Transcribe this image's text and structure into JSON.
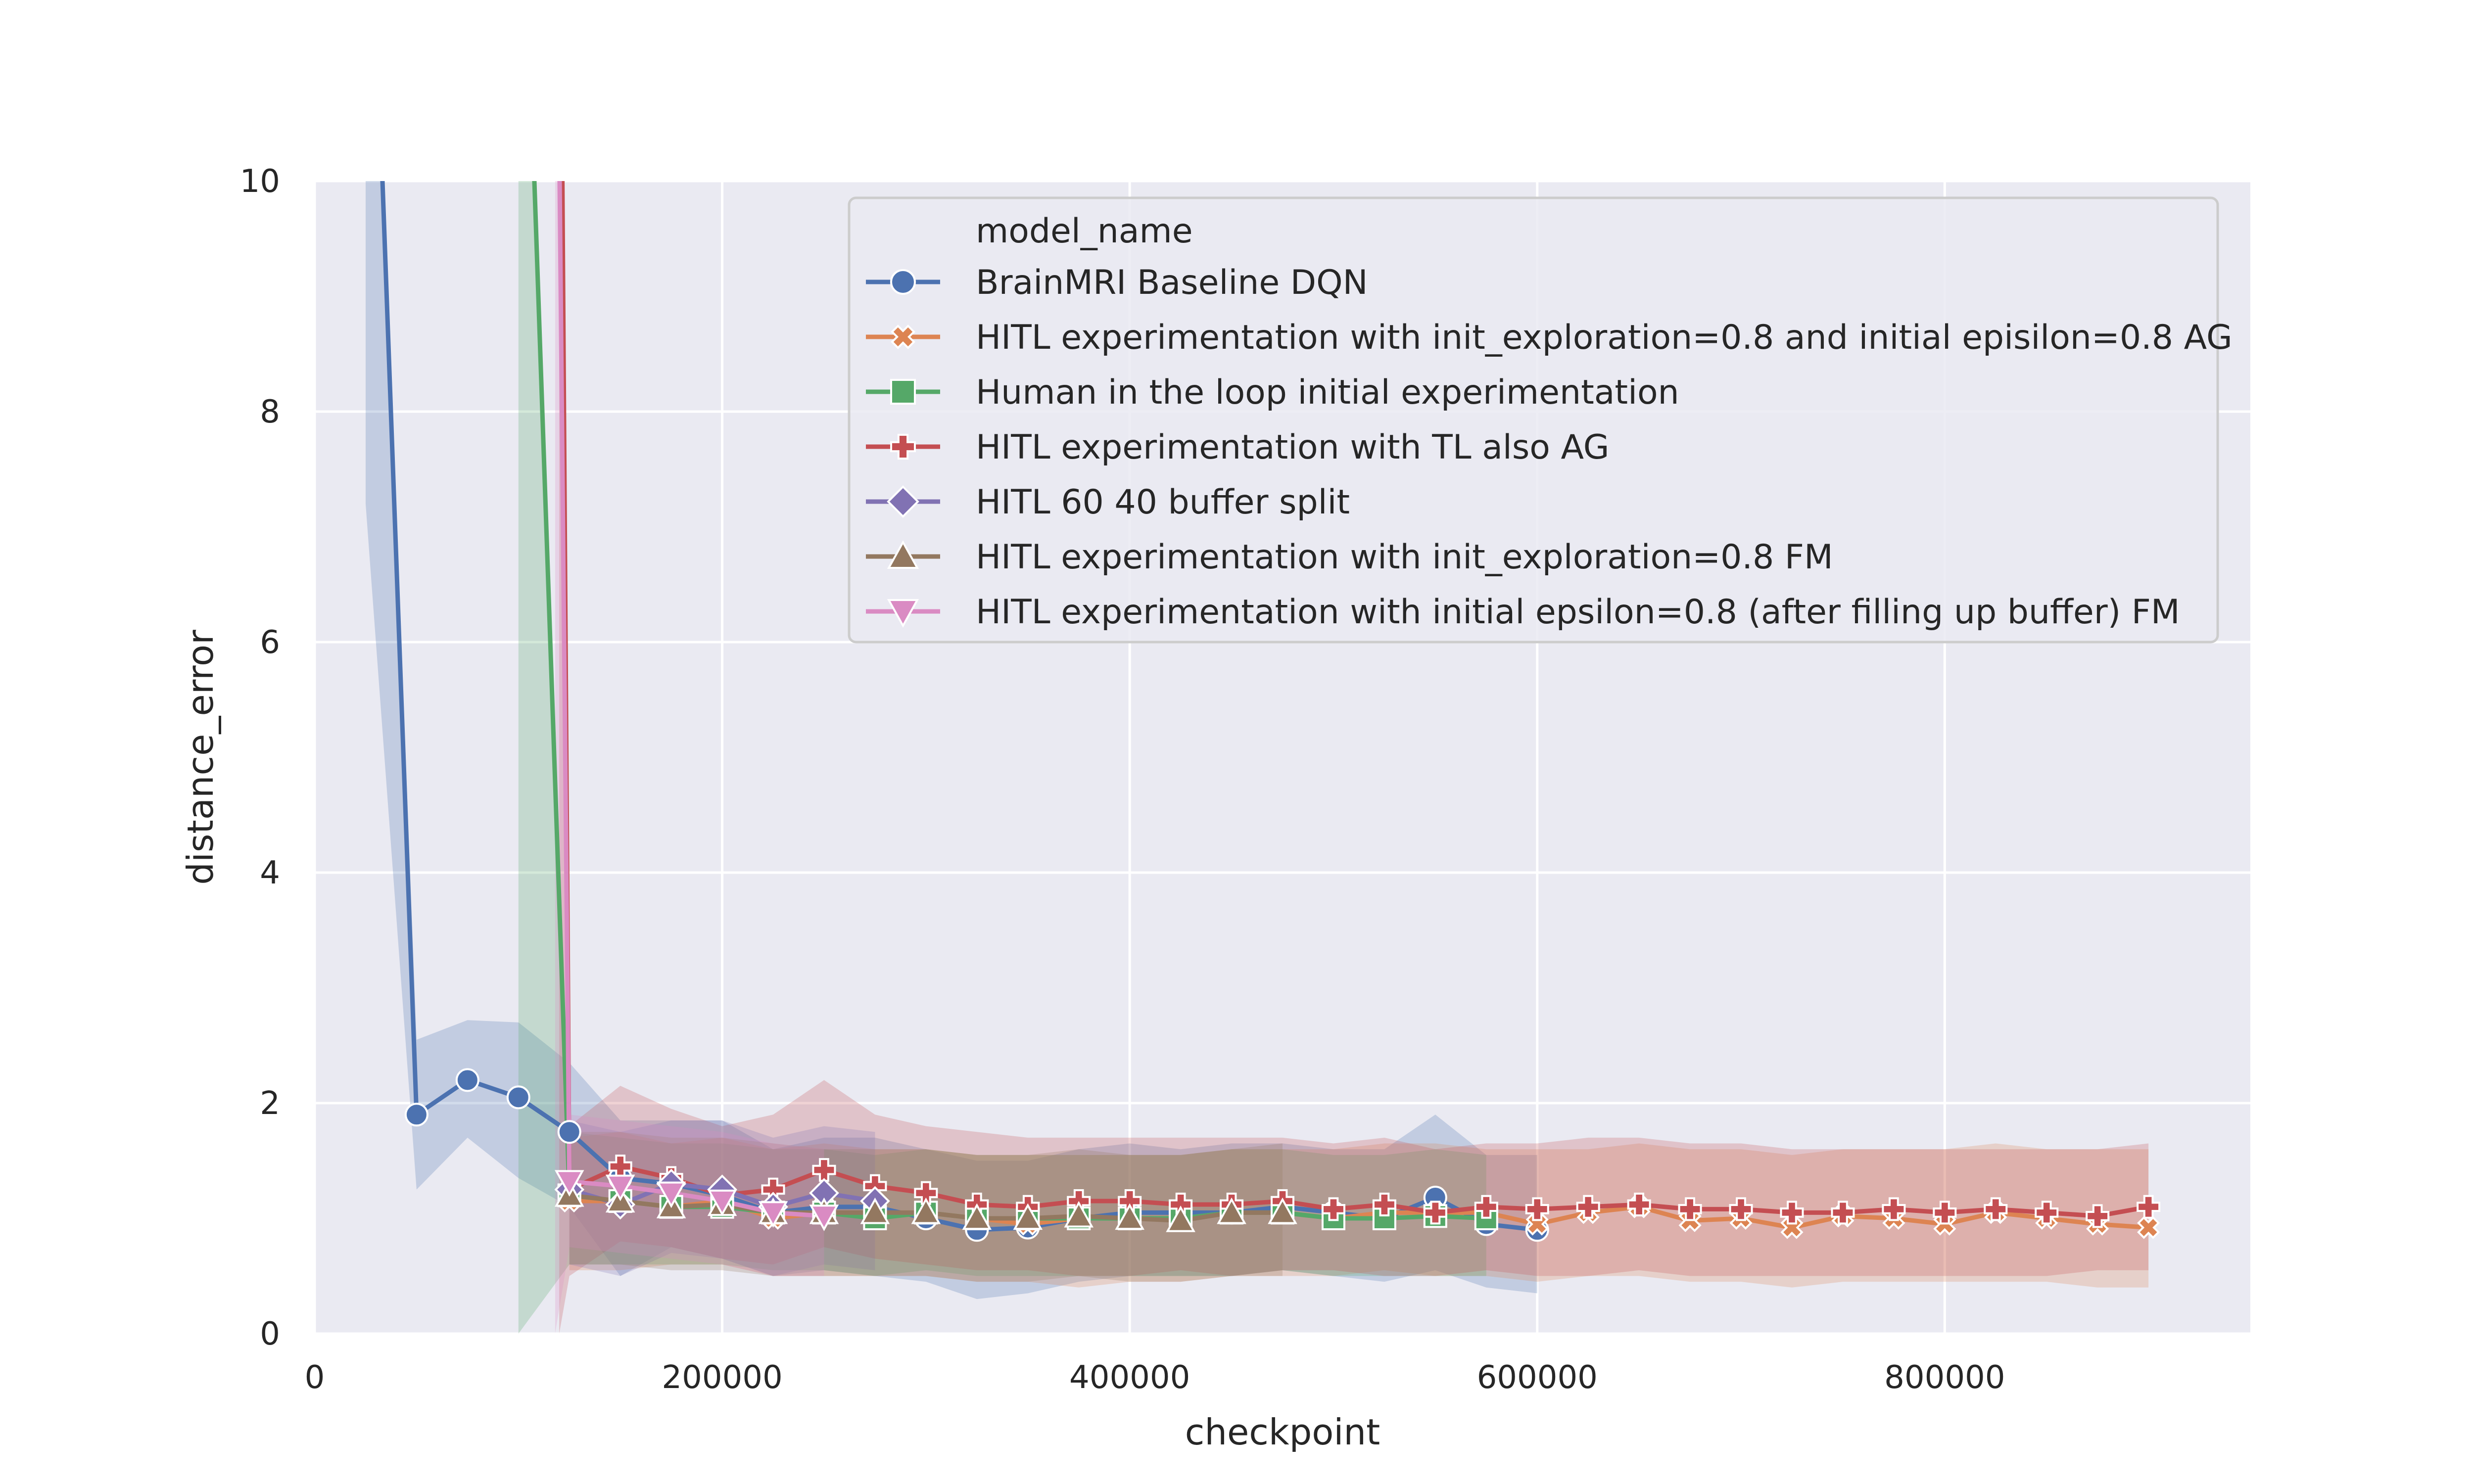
{
  "chart_data": {
    "type": "line",
    "title": "",
    "xlabel": "checkpoint",
    "ylabel": "distance_error",
    "xlim": [
      0,
      950000
    ],
    "ylim": [
      0,
      10
    ],
    "xticks": [
      0,
      200000,
      400000,
      600000,
      800000
    ],
    "yticks": [
      0,
      2,
      4,
      6,
      8,
      10
    ],
    "xtick_labels": [
      "0",
      "200000",
      "400000",
      "600000",
      "800000"
    ],
    "ytick_labels": [
      "0",
      "2",
      "4",
      "6",
      "8",
      "10"
    ],
    "grid": true,
    "legend": {
      "title": "model_name",
      "position": "top-right"
    },
    "series": [
      {
        "name": "BrainMRI Baseline DQN",
        "color": "#4c72b0",
        "marker": "circle",
        "x": [
          25000,
          50000,
          75000,
          100000,
          125000,
          150000,
          175000,
          200000,
          225000,
          250000,
          275000,
          300000,
          325000,
          350000,
          375000,
          400000,
          425000,
          450000,
          475000,
          500000,
          525000,
          550000,
          575000,
          600000
        ],
        "y": [
          14.0,
          1.9,
          2.2,
          2.05,
          1.75,
          1.35,
          1.3,
          1.2,
          1.05,
          1.1,
          1.1,
          1.0,
          0.9,
          0.92,
          1.0,
          1.05,
          1.05,
          1.05,
          1.1,
          1.05,
          1.0,
          1.18,
          0.95,
          0.9
        ],
        "lower": [
          7.2,
          1.25,
          1.7,
          1.35,
          1.1,
          0.5,
          0.75,
          0.65,
          0.5,
          0.55,
          0.5,
          0.45,
          0.3,
          0.35,
          0.45,
          0.5,
          0.5,
          0.5,
          0.55,
          0.5,
          0.45,
          0.55,
          0.4,
          0.35
        ],
        "upper": [
          14.0,
          2.55,
          2.72,
          2.7,
          2.35,
          1.85,
          1.85,
          1.85,
          1.6,
          1.7,
          1.7,
          1.6,
          1.5,
          1.5,
          1.6,
          1.65,
          1.6,
          1.65,
          1.65,
          1.6,
          1.6,
          1.9,
          1.55,
          1.55
        ]
      },
      {
        "name": "HITL experimentation with init_exploration=0.8 and initial episilon=0.8 AG",
        "color": "#dd8452",
        "marker": "x",
        "x": [
          125000,
          150000,
          175000,
          200000,
          225000,
          250000,
          275000,
          300000,
          325000,
          350000,
          375000,
          400000,
          425000,
          450000,
          475000,
          500000,
          525000,
          550000,
          575000,
          600000,
          625000,
          650000,
          675000,
          700000,
          725000,
          750000,
          775000,
          800000,
          825000,
          850000,
          875000,
          900000
        ],
        "y": [
          1.15,
          1.15,
          1.1,
          1.15,
          1.0,
          1.05,
          1.05,
          1.05,
          1.0,
          0.95,
          1.0,
          1.0,
          1.0,
          1.05,
          1.05,
          1.0,
          1.05,
          1.05,
          1.05,
          0.95,
          1.05,
          1.1,
          0.98,
          1.0,
          0.92,
          1.02,
          1.0,
          0.95,
          1.05,
          1.0,
          0.95,
          0.92
        ],
        "lower": [
          0.55,
          0.55,
          0.6,
          0.6,
          0.5,
          0.5,
          0.5,
          0.5,
          0.45,
          0.45,
          0.4,
          0.45,
          0.45,
          0.5,
          0.5,
          0.5,
          0.55,
          0.5,
          0.5,
          0.45,
          0.5,
          0.5,
          0.45,
          0.45,
          0.4,
          0.45,
          0.45,
          0.45,
          0.45,
          0.45,
          0.4,
          0.4
        ],
        "upper": [
          1.7,
          1.75,
          1.65,
          1.7,
          1.6,
          1.65,
          1.6,
          1.6,
          1.55,
          1.55,
          1.55,
          1.55,
          1.55,
          1.6,
          1.6,
          1.6,
          1.65,
          1.65,
          1.6,
          1.6,
          1.6,
          1.65,
          1.6,
          1.6,
          1.55,
          1.6,
          1.6,
          1.6,
          1.65,
          1.6,
          1.6,
          1.6
        ]
      },
      {
        "name": "Human in the loop initial experimentation",
        "color": "#55a868",
        "marker": "square",
        "x": [
          100000,
          125000,
          150000,
          175000,
          200000,
          225000,
          250000,
          275000,
          300000,
          325000,
          350000,
          375000,
          400000,
          425000,
          450000,
          475000,
          500000,
          525000,
          550000,
          575000
        ],
        "y": [
          14.0,
          1.2,
          1.15,
          1.1,
          1.1,
          1.05,
          1.05,
          1.0,
          1.05,
          1.0,
          1.0,
          1.0,
          1.0,
          1.0,
          1.05,
          1.05,
          1.0,
          1.0,
          1.02,
          1.0
        ],
        "lower": [
          0.0,
          0.6,
          0.6,
          0.6,
          0.6,
          0.55,
          0.55,
          0.5,
          0.55,
          0.5,
          0.5,
          0.5,
          0.5,
          0.5,
          0.5,
          0.55,
          0.5,
          0.5,
          0.5,
          0.5
        ],
        "upper": [
          14.0,
          1.75,
          1.7,
          1.65,
          1.65,
          1.6,
          1.6,
          1.55,
          1.6,
          1.55,
          1.55,
          1.55,
          1.55,
          1.55,
          1.6,
          1.6,
          1.55,
          1.55,
          1.6,
          1.55
        ]
      },
      {
        "name": "HITL experimentation with TL also AG",
        "color": "#c44e52",
        "marker": "plus",
        "x": [
          120000,
          125000,
          150000,
          175000,
          200000,
          225000,
          250000,
          275000,
          300000,
          325000,
          350000,
          375000,
          400000,
          425000,
          450000,
          475000,
          500000,
          525000,
          550000,
          575000,
          600000,
          625000,
          650000,
          675000,
          700000,
          725000,
          750000,
          775000,
          800000,
          825000,
          850000,
          875000,
          900000
        ],
        "y": [
          14.0,
          1.25,
          1.45,
          1.35,
          1.2,
          1.25,
          1.42,
          1.28,
          1.22,
          1.12,
          1.1,
          1.15,
          1.15,
          1.12,
          1.12,
          1.15,
          1.08,
          1.12,
          1.05,
          1.1,
          1.08,
          1.1,
          1.12,
          1.08,
          1.08,
          1.05,
          1.05,
          1.08,
          1.05,
          1.08,
          1.05,
          1.02,
          1.1
        ],
        "lower": [
          0.0,
          0.5,
          0.8,
          0.75,
          0.65,
          0.6,
          0.75,
          0.65,
          0.6,
          0.55,
          0.55,
          0.5,
          0.5,
          0.55,
          0.5,
          0.55,
          0.55,
          0.5,
          0.5,
          0.55,
          0.5,
          0.5,
          0.55,
          0.5,
          0.5,
          0.5,
          0.5,
          0.5,
          0.5,
          0.5,
          0.5,
          0.55,
          0.55
        ],
        "upper": [
          14.0,
          1.8,
          2.15,
          1.95,
          1.8,
          1.9,
          2.2,
          1.9,
          1.8,
          1.75,
          1.7,
          1.7,
          1.7,
          1.7,
          1.7,
          1.7,
          1.65,
          1.7,
          1.6,
          1.65,
          1.65,
          1.7,
          1.7,
          1.65,
          1.65,
          1.6,
          1.6,
          1.6,
          1.6,
          1.6,
          1.6,
          1.6,
          1.65
        ]
      },
      {
        "name": "HITL 60 40 buffer split",
        "color": "#8172b3",
        "marker": "diamond",
        "x": [
          125000,
          150000,
          175000,
          200000,
          225000,
          250000,
          275000
        ],
        "y": [
          1.25,
          1.12,
          1.3,
          1.25,
          1.1,
          1.22,
          1.15
        ],
        "lower": [
          0.6,
          0.5,
          0.7,
          0.65,
          0.5,
          0.6,
          0.55
        ],
        "upper": [
          1.85,
          1.75,
          1.85,
          1.85,
          1.7,
          1.8,
          1.75
        ]
      },
      {
        "name": "HITL experimentation with init_exploration=0.8 FM",
        "color": "#937860",
        "marker": "triangle-up",
        "x": [
          125000,
          150000,
          175000,
          200000,
          225000,
          250000,
          275000,
          300000,
          325000,
          350000,
          375000,
          400000,
          425000,
          450000,
          475000
        ],
        "y": [
          1.2,
          1.15,
          1.1,
          1.12,
          1.05,
          1.05,
          1.05,
          1.05,
          1.0,
          1.0,
          1.02,
          1.0,
          0.98,
          1.05,
          1.05
        ],
        "lower": [
          0.6,
          0.6,
          0.55,
          0.55,
          0.5,
          0.5,
          0.5,
          0.5,
          0.45,
          0.45,
          0.5,
          0.45,
          0.45,
          0.5,
          0.5
        ],
        "upper": [
          1.75,
          1.75,
          1.7,
          1.7,
          1.65,
          1.6,
          1.6,
          1.6,
          1.55,
          1.55,
          1.6,
          1.55,
          1.55,
          1.6,
          1.65
        ]
      },
      {
        "name": "HITL experimentation with initial epsilon=0.8 (after filling up buffer) FM",
        "color": "#da8bc3",
        "marker": "triangle-down",
        "x": [
          118000,
          125000,
          150000,
          175000,
          200000,
          225000,
          250000
        ],
        "y": [
          14.0,
          1.32,
          1.28,
          1.22,
          1.15,
          1.05,
          1.02
        ],
        "lower": [
          0.0,
          0.75,
          0.7,
          0.65,
          0.6,
          0.5,
          0.5
        ],
        "upper": [
          14.0,
          1.9,
          1.85,
          1.8,
          1.75,
          1.65,
          1.6
        ]
      }
    ]
  }
}
